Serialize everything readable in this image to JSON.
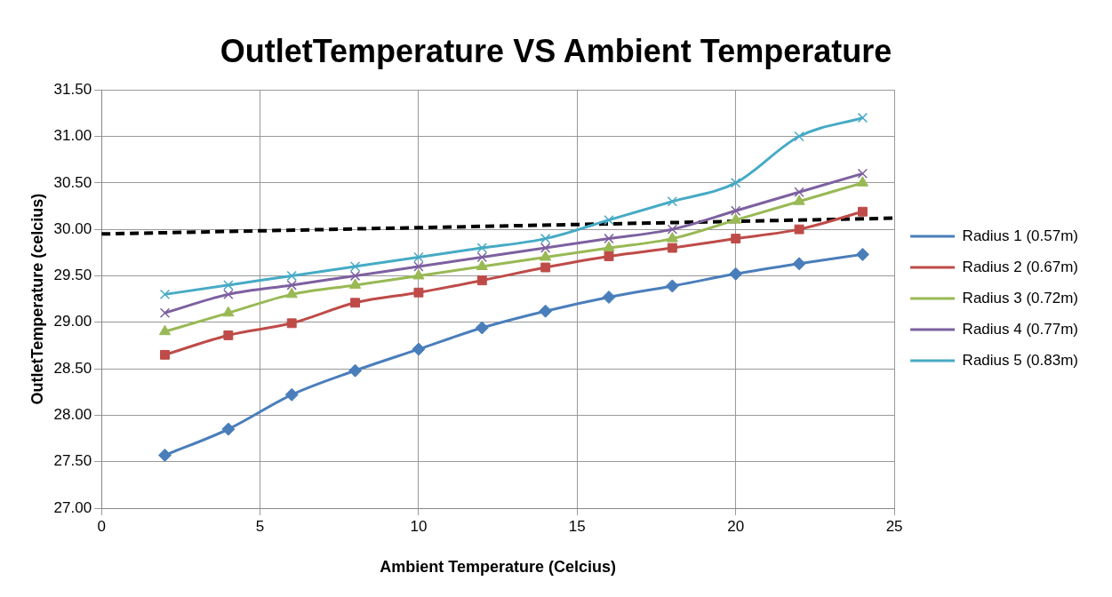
{
  "chart_data": {
    "type": "line",
    "title": "OutletTemperature VS Ambient Temperature",
    "xlabel": "Ambient Temperature (Celcius)",
    "ylabel": "OutletTemperature (celcius)",
    "x": [
      2,
      4,
      6,
      8,
      10,
      12,
      14,
      16,
      18,
      20,
      22,
      24
    ],
    "series": [
      {
        "name": "Radius 1 (0.57m)",
        "color": "#4a7ebb",
        "marker": "diamond",
        "values": [
          27.57,
          27.85,
          28.22,
          28.48,
          28.71,
          28.94,
          29.12,
          29.27,
          29.39,
          29.52,
          29.63,
          29.73
        ]
      },
      {
        "name": "Radius 2 (0.67m)",
        "color": "#be4b48",
        "marker": "square",
        "values": [
          28.65,
          28.86,
          28.99,
          29.21,
          29.32,
          29.45,
          29.59,
          29.71,
          29.8,
          29.9,
          30.0,
          30.19
        ]
      },
      {
        "name": "Radius 3 (0.72m)",
        "color": "#98b954",
        "marker": "triangle",
        "values": [
          28.9,
          29.1,
          29.3,
          29.4,
          29.5,
          29.6,
          29.7,
          29.8,
          29.9,
          30.1,
          30.3,
          30.5
        ]
      },
      {
        "name": "Radius 4 (0.77m)",
        "color": "#7d60a0",
        "marker": "cross",
        "values": [
          29.1,
          29.3,
          29.4,
          29.5,
          29.6,
          29.7,
          29.8,
          29.9,
          30.0,
          30.2,
          30.4,
          30.6
        ]
      },
      {
        "name": "Radius 5 (0.83m)",
        "color": "#46aac5",
        "marker": "cross",
        "values": [
          29.3,
          29.4,
          29.5,
          29.6,
          29.7,
          29.8,
          29.9,
          30.1,
          30.3,
          30.5,
          31.0,
          31.2
        ]
      },
      {
        "type": "line",
        "color": "#000000",
        "line_style": "dashed",
        "marker": "none",
        "x": [
          0,
          25
        ],
        "values": [
          29.95,
          30.12
        ]
      }
    ],
    "xlim": [
      0,
      25
    ],
    "xticks": [
      0,
      5,
      10,
      15,
      20,
      25
    ],
    "ylim": [
      27,
      31.5
    ],
    "yticks": [
      {
        "value": 27,
        "label": "27.00"
      },
      {
        "value": 27.5,
        "label": "27.50"
      },
      {
        "value": 28,
        "label": "28.00"
      },
      {
        "value": 28.5,
        "label": "28.50"
      },
      {
        "value": 29,
        "label": "29.00"
      },
      {
        "value": 29.5,
        "label": "29.50"
      },
      {
        "value": 30,
        "label": "30.00"
      },
      {
        "value": 30.5,
        "label": "30.50"
      },
      {
        "value": 31,
        "label": "31.00"
      },
      {
        "value": 31.5,
        "label": "31.50"
      }
    ],
    "grid": true,
    "legend": "right"
  }
}
